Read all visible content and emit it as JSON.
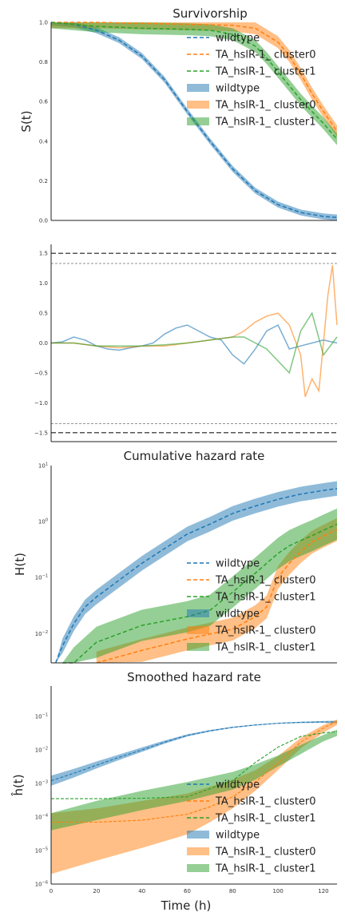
{
  "colors": {
    "wildtype": "#1f77b4",
    "cluster0": "#ff7f0e",
    "cluster1": "#2ca02c",
    "axis": "#222222",
    "ref_line": "#555555"
  },
  "chart_data": [
    {
      "type": "line",
      "title": "Survivorship",
      "ylabel": "S(t)",
      "xlim": [
        0,
        126
      ],
      "ylim": [
        0,
        1
      ],
      "yscale": "linear",
      "yticks": [
        "0.0",
        "0.2",
        "0.4",
        "0.6",
        "0.8",
        "1.0"
      ],
      "legend": {
        "placement": "right",
        "entries": [
          {
            "label": "wildtype",
            "style": "dashed",
            "color": "#1f77b4"
          },
          {
            "label": "TA_hslR-1_ cluster0",
            "style": "dashed",
            "color": "#ff7f0e"
          },
          {
            "label": "TA_hslR-1_ cluster1",
            "style": "dashed",
            "color": "#2ca02c"
          },
          {
            "label": "wildtype",
            "style": "band",
            "color": "#1f77b4"
          },
          {
            "label": "TA_hslR-1_ cluster0",
            "style": "band",
            "color": "#ff7f0e"
          },
          {
            "label": "TA_hslR-1_ cluster1",
            "style": "band",
            "color": "#2ca02c"
          }
        ]
      },
      "series": [
        {
          "name": "wildtype",
          "x": [
            0,
            10,
            20,
            30,
            40,
            50,
            60,
            70,
            80,
            90,
            100,
            110,
            120,
            126
          ],
          "values": [
            1.0,
            0.99,
            0.96,
            0.91,
            0.83,
            0.71,
            0.55,
            0.4,
            0.26,
            0.15,
            0.08,
            0.04,
            0.02,
            0.015
          ],
          "band": 0.015
        },
        {
          "name": "TA_hslR-1_ cluster0",
          "x": [
            0,
            20,
            40,
            60,
            80,
            90,
            100,
            105,
            110,
            115,
            120,
            126
          ],
          "values": [
            1.0,
            1.0,
            0.995,
            0.99,
            0.985,
            0.97,
            0.9,
            0.83,
            0.74,
            0.64,
            0.55,
            0.45
          ],
          "band": 0.03
        },
        {
          "name": "TA_hslR-1_ cluster1",
          "x": [
            0,
            20,
            40,
            60,
            70,
            80,
            90,
            95,
            100,
            105,
            110,
            115,
            120,
            126
          ],
          "values": [
            1.0,
            0.98,
            0.97,
            0.965,
            0.96,
            0.94,
            0.88,
            0.82,
            0.75,
            0.68,
            0.61,
            0.55,
            0.49,
            0.41
          ],
          "band": 0.03
        }
      ]
    },
    {
      "type": "line",
      "title": "",
      "ylabel": "",
      "xlim": [
        0,
        126
      ],
      "ylim": [
        -1.65,
        1.65
      ],
      "yscale": "linear",
      "yticks": [
        "−1.5",
        "−1.0",
        "−0.5",
        "0.0",
        "0.5",
        "1.0",
        "1.5"
      ],
      "reference_lines": [
        {
          "y": 1.5,
          "style": "dashed"
        },
        {
          "y": 1.33,
          "style": "thin-dashed"
        },
        {
          "y": -1.35,
          "style": "thin-dashed"
        },
        {
          "y": -1.5,
          "style": "dashed"
        }
      ],
      "series": [
        {
          "name": "wildtype",
          "x": [
            0,
            5,
            10,
            15,
            20,
            25,
            30,
            35,
            40,
            45,
            50,
            55,
            60,
            65,
            70,
            75,
            80,
            85,
            90,
            95,
            100,
            105,
            110,
            115,
            120,
            126
          ],
          "values": [
            0.0,
            0.02,
            0.1,
            0.05,
            -0.05,
            -0.1,
            -0.12,
            -0.08,
            -0.05,
            0.0,
            0.15,
            0.25,
            0.3,
            0.2,
            0.1,
            0.05,
            -0.2,
            -0.35,
            -0.1,
            0.2,
            0.3,
            -0.1,
            -0.05,
            0.0,
            0.05,
            0.0
          ]
        },
        {
          "name": "TA_hslR-1_ cluster0",
          "x": [
            0,
            10,
            20,
            30,
            40,
            50,
            60,
            70,
            80,
            85,
            90,
            95,
            100,
            105,
            110,
            112,
            115,
            118,
            120,
            122,
            124,
            126
          ],
          "values": [
            0.0,
            0.0,
            -0.05,
            -0.08,
            -0.05,
            -0.05,
            0.0,
            0.05,
            0.1,
            0.2,
            0.35,
            0.45,
            0.5,
            0.3,
            -0.2,
            -0.9,
            -0.6,
            -0.8,
            0.0,
            0.8,
            1.3,
            0.3
          ]
        },
        {
          "name": "TA_hslR-1_ cluster1",
          "x": [
            0,
            10,
            20,
            30,
            40,
            50,
            60,
            70,
            80,
            85,
            90,
            95,
            100,
            105,
            110,
            115,
            120,
            126
          ],
          "values": [
            0.0,
            0.0,
            -0.05,
            -0.05,
            -0.05,
            -0.03,
            0.0,
            0.05,
            0.1,
            0.1,
            0.0,
            -0.1,
            -0.3,
            -0.5,
            0.2,
            0.5,
            -0.2,
            0.1
          ]
        }
      ]
    },
    {
      "type": "line",
      "title": "Cumulative hazard rate",
      "ylabel": "H(t)",
      "xlim": [
        0,
        126
      ],
      "ylim": [
        0.003,
        10
      ],
      "yscale": "log",
      "yticks": [
        {
          "base": "10",
          "exp": "−2",
          "value": 0.01
        },
        {
          "base": "10",
          "exp": "−1",
          "value": 0.1
        },
        {
          "base": "10",
          "exp": "0",
          "value": 1
        },
        {
          "base": "10",
          "exp": "1",
          "value": 10
        }
      ],
      "legend": {
        "placement": "lower right",
        "entries": [
          {
            "label": "wildtype",
            "style": "dashed",
            "color": "#1f77b4"
          },
          {
            "label": "TA_hslR-1_ cluster0",
            "style": "dashed",
            "color": "#ff7f0e"
          },
          {
            "label": "TA_hslR-1_ cluster1",
            "style": "dashed",
            "color": "#2ca02c"
          },
          {
            "label": "wildtype",
            "style": "band",
            "color": "#1f77b4"
          },
          {
            "label": "TA_hslR-1_ cluster0",
            "style": "band",
            "color": "#ff7f0e"
          },
          {
            "label": "TA_hslR-1_ cluster1",
            "style": "band",
            "color": "#2ca02c"
          }
        ]
      },
      "series": [
        {
          "name": "wildtype",
          "x": [
            2,
            5,
            10,
            15,
            20,
            30,
            40,
            50,
            60,
            70,
            80,
            90,
            100,
            110,
            120,
            126
          ],
          "values": [
            0.002,
            0.006,
            0.015,
            0.03,
            0.045,
            0.09,
            0.18,
            0.33,
            0.6,
            0.9,
            1.4,
            1.9,
            2.5,
            3.1,
            3.6,
            3.9
          ],
          "band_factor": 1.35
        },
        {
          "name": "TA_hslR-1_ cluster0",
          "x": [
            20,
            40,
            60,
            80,
            90,
            95,
            100,
            105,
            110,
            115,
            120,
            126
          ],
          "values": [
            0.003,
            0.005,
            0.008,
            0.012,
            0.02,
            0.03,
            0.1,
            0.18,
            0.29,
            0.43,
            0.55,
            0.72
          ],
          "band_factor": 1.6
        },
        {
          "name": "TA_hslR-1_ cluster1",
          "x": [
            5,
            10,
            20,
            40,
            60,
            70,
            80,
            90,
            95,
            100,
            105,
            110,
            115,
            120,
            126
          ],
          "values": [
            0.001,
            0.003,
            0.007,
            0.014,
            0.02,
            0.026,
            0.055,
            0.12,
            0.18,
            0.27,
            0.37,
            0.46,
            0.56,
            0.7,
            0.9
          ],
          "band_factor": 1.9
        }
      ]
    },
    {
      "type": "line",
      "title": "Smoothed hazard rate",
      "ylabel": "ĥ(t)",
      "xlabel": "Time (h)",
      "xlim": [
        0,
        126
      ],
      "xticks": [
        "0",
        "20",
        "40",
        "60",
        "80",
        "100",
        "120"
      ],
      "ylim": [
        1e-06,
        0.8
      ],
      "yscale": "log",
      "yticks": [
        {
          "base": "10",
          "exp": "−6",
          "value": 1e-06
        },
        {
          "base": "10",
          "exp": "−5",
          "value": 1e-05
        },
        {
          "base": "10",
          "exp": "−4",
          "value": 0.0001
        },
        {
          "base": "10",
          "exp": "−3",
          "value": 0.001
        },
        {
          "base": "10",
          "exp": "−2",
          "value": 0.01
        },
        {
          "base": "10",
          "exp": "−1",
          "value": 0.1
        }
      ],
      "legend": {
        "placement": "lower right",
        "entries": [
          {
            "label": "wildtype",
            "style": "dashed",
            "color": "#1f77b4"
          },
          {
            "label": "TA_hslR-1_ cluster0",
            "style": "dashed",
            "color": "#ff7f0e"
          },
          {
            "label": "TA_hslR-1_ cluster1",
            "style": "dashed",
            "color": "#2ca02c"
          },
          {
            "label": "wildtype",
            "style": "band",
            "color": "#1f77b4"
          },
          {
            "label": "TA_hslR-1_ cluster0",
            "style": "band",
            "color": "#ff7f0e"
          },
          {
            "label": "TA_hslR-1_ cluster1",
            "style": "band",
            "color": "#2ca02c"
          }
        ]
      },
      "series": [
        {
          "name": "wildtype",
          "x": [
            0,
            10,
            20,
            30,
            40,
            50,
            60,
            70,
            80,
            90,
            100,
            110,
            120,
            126
          ],
          "values": [
            0.0012,
            0.002,
            0.0035,
            0.006,
            0.01,
            0.017,
            0.027,
            0.037,
            0.047,
            0.055,
            0.062,
            0.066,
            0.068,
            0.068
          ],
          "lower": [
            0.00085,
            0.0015,
            0.0028,
            0.005,
            0.0087,
            0.0152,
            0.025,
            0.035,
            0.045,
            0.053,
            0.06,
            0.063,
            0.064,
            0.062
          ],
          "upper": [
            0.0017,
            0.0027,
            0.0045,
            0.0073,
            0.0118,
            0.019,
            0.029,
            0.039,
            0.049,
            0.057,
            0.064,
            0.069,
            0.072,
            0.074
          ]
        },
        {
          "name": "TA_hslR-1_ cluster0",
          "x": [
            0,
            20,
            40,
            60,
            70,
            80,
            90,
            100,
            110,
            120,
            126
          ],
          "values": [
            7e-05,
            7e-05,
            8e-05,
            0.00012,
            0.0002,
            0.0004,
            0.0011,
            0.004,
            0.017,
            0.045,
            0.07
          ],
          "lower": [
            2e-06,
            5e-06,
            1.2e-05,
            3e-05,
            7e-05,
            0.00018,
            0.0006,
            0.0025,
            0.011,
            0.033,
            0.055
          ],
          "upper": [
            0.00013,
            0.00018,
            0.0003,
            0.0005,
            0.0008,
            0.0013,
            0.0025,
            0.0065,
            0.023,
            0.055,
            0.08
          ]
        },
        {
          "name": "TA_hslR-1_ cluster1",
          "x": [
            0,
            20,
            40,
            60,
            80,
            90,
            100,
            110,
            120,
            126
          ],
          "values": [
            0.00035,
            0.00035,
            0.00036,
            0.0004,
            0.0012,
            0.0042,
            0.012,
            0.025,
            0.032,
            0.035
          ],
          "lower": [
            4e-05,
            8e-05,
            0.00016,
            0.0003,
            0.00065,
            0.0013,
            0.0032,
            0.0075,
            0.018,
            0.026
          ],
          "upper": [
            0.00013,
            0.0003,
            0.0006,
            0.0011,
            0.0022,
            0.0037,
            0.0068,
            0.014,
            0.028,
            0.04
          ]
        }
      ]
    }
  ]
}
